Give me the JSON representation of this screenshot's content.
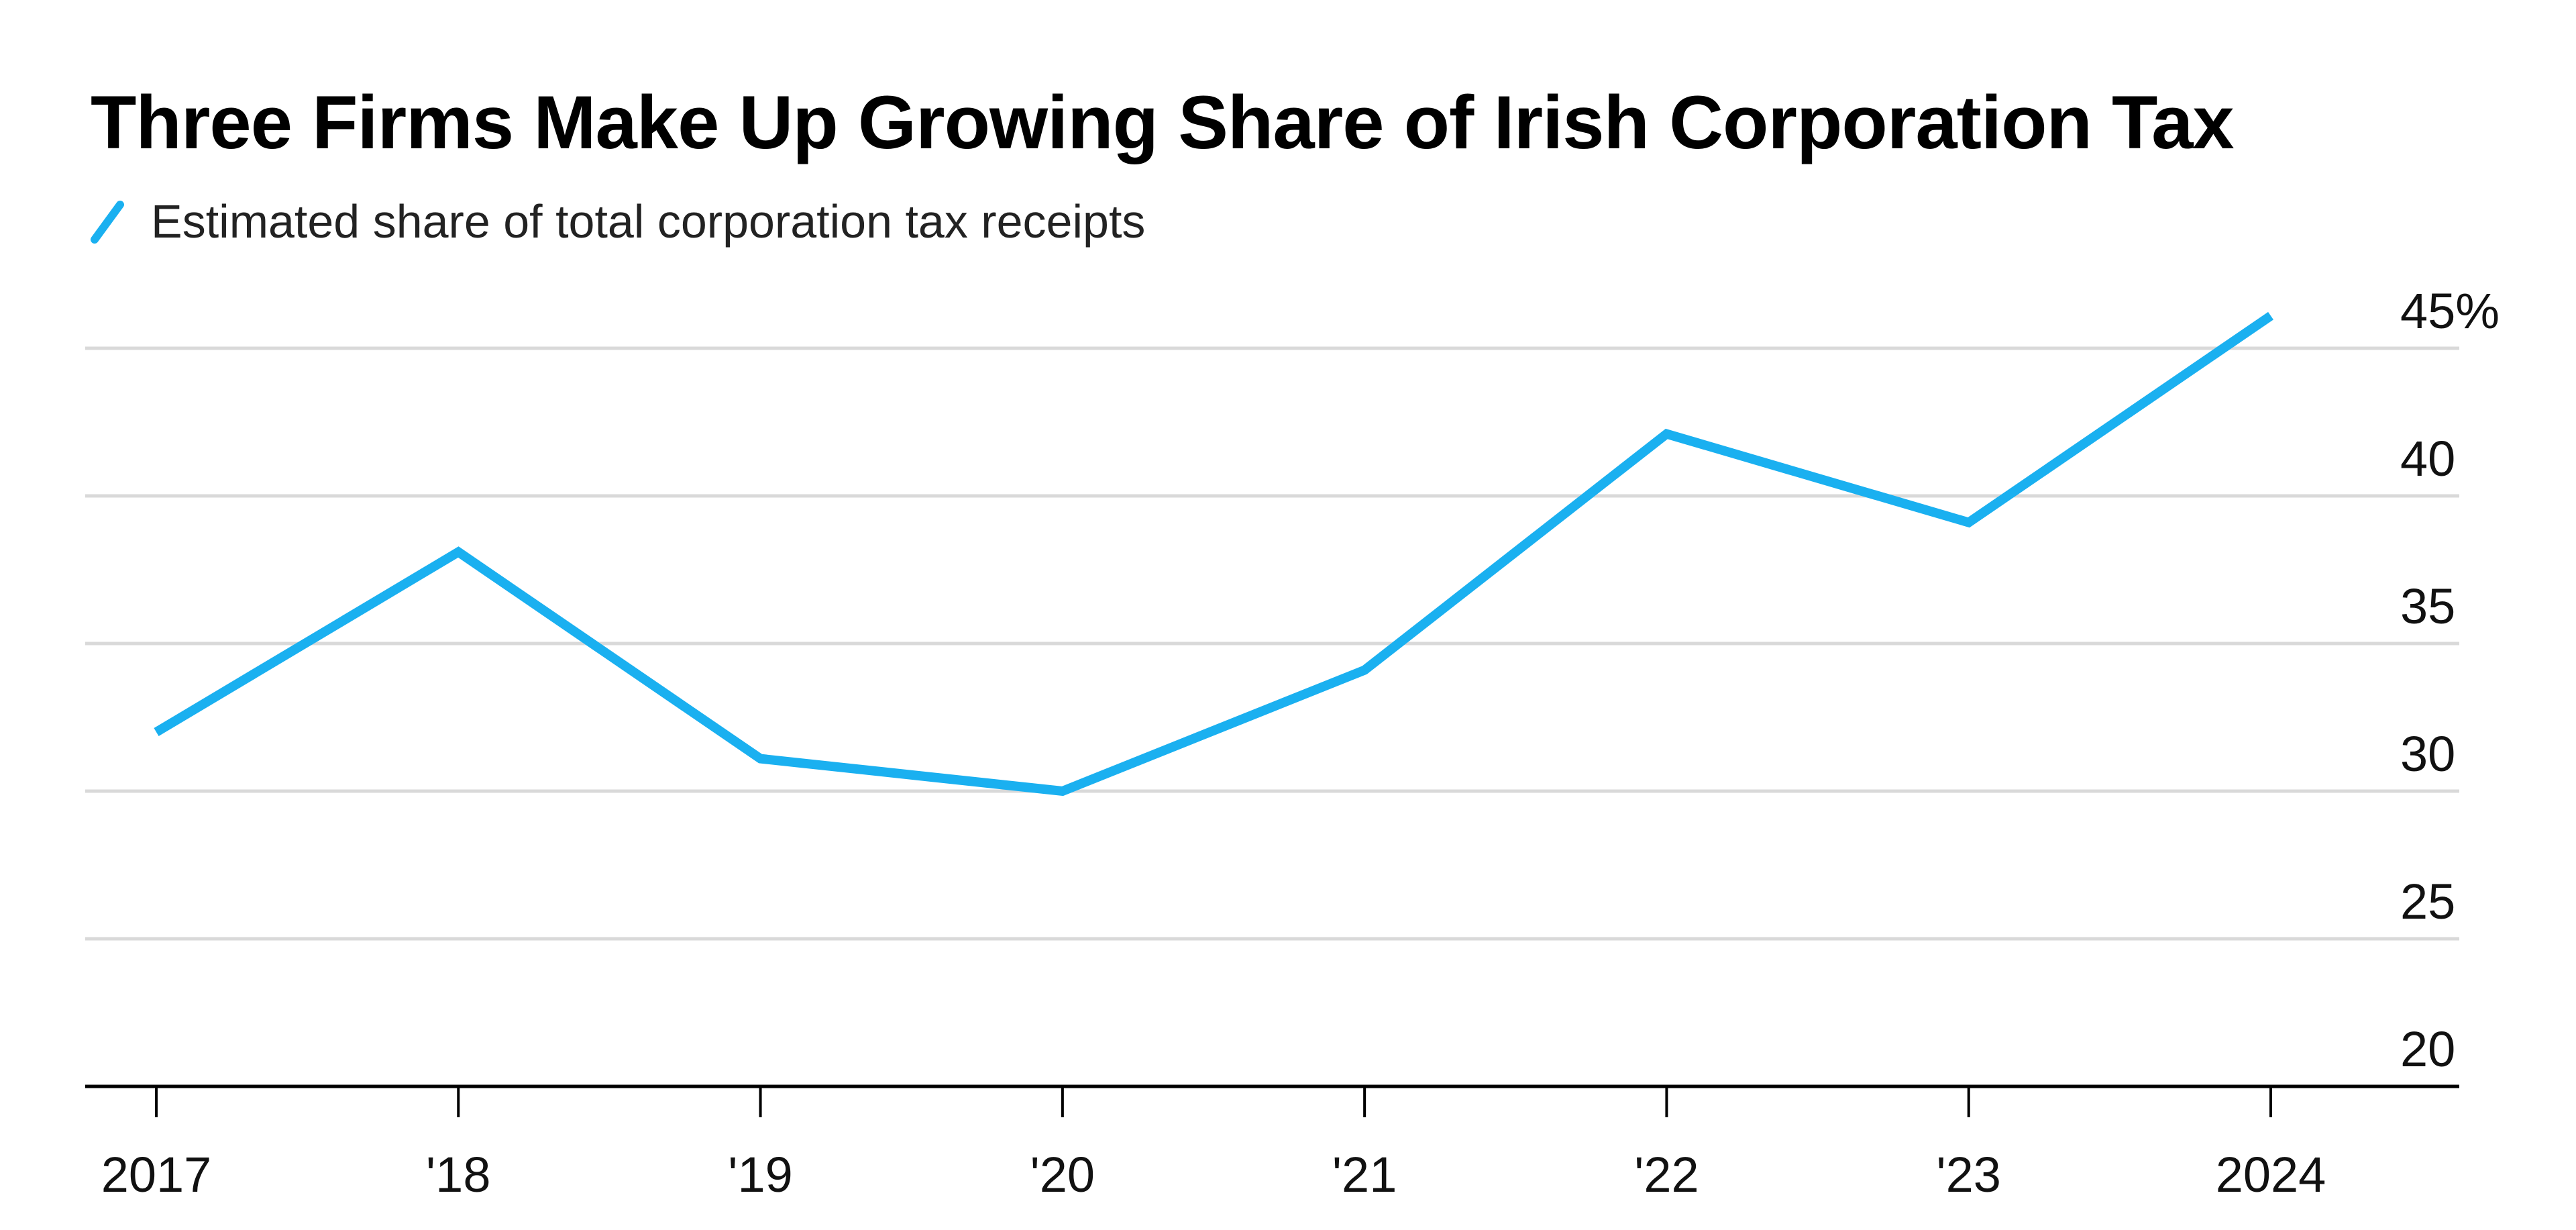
{
  "chart_data": {
    "type": "line",
    "title": "Three Firms Make Up Growing Share of Irish Corporation Tax",
    "x": [
      "2017",
      "'18",
      "'19",
      "'20",
      "'21",
      "'22",
      "'23",
      "2024"
    ],
    "series": [
      {
        "name": "Estimated share of total corporation tax receipts",
        "values": [
          32.0,
          38.1,
          31.1,
          30.0,
          34.1,
          42.1,
          39.1,
          46.1
        ],
        "color": "#1ab0f0"
      }
    ],
    "y_ticks": [
      "20",
      "25",
      "30",
      "35",
      "40",
      "45%"
    ],
    "y_tick_values": [
      20,
      25,
      30,
      35,
      40,
      45
    ],
    "ylim": [
      20,
      46.1
    ],
    "y_axis_side": "right",
    "grid": true,
    "legend_placement": "top-left"
  }
}
